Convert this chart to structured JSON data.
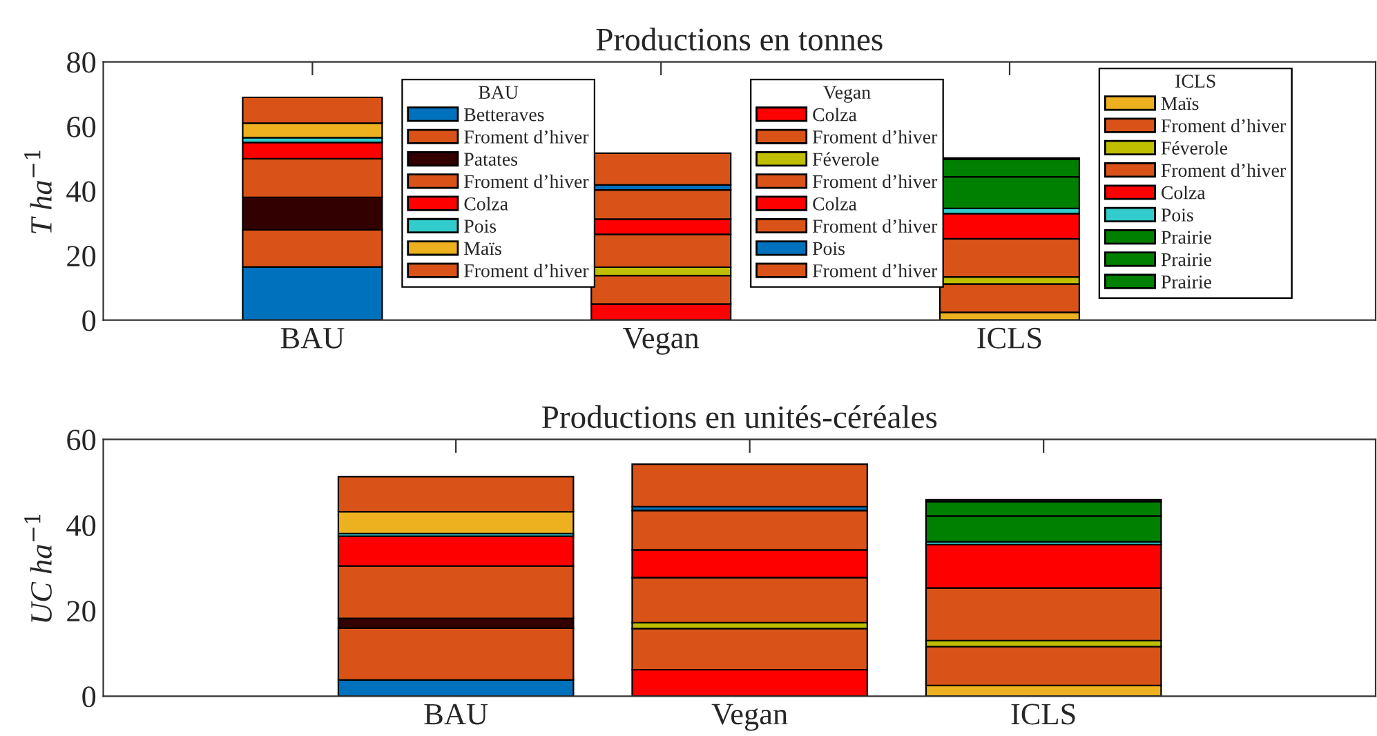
{
  "chart_data": [
    {
      "type": "bar",
      "stacked": true,
      "title": "Productions en tonnes",
      "ylabel": "T ha$^{−1}$",
      "categories": [
        "BAU",
        "Vegan",
        "ICLS"
      ],
      "ylim": [
        0,
        80
      ],
      "yticks": [
        0,
        20,
        40,
        60,
        80
      ],
      "legend": "right",
      "series": [
        {
          "name": "Betteraves",
          "color": "#0072bd",
          "values": [
            16.5,
            null,
            null
          ]
        },
        {
          "name": "Froment d’hiver",
          "color": "#d95319",
          "values": [
            11.5,
            null,
            null
          ]
        },
        {
          "name": "Patates",
          "color": "#330000",
          "values": [
            10,
            null,
            null
          ]
        },
        {
          "name": "Froment d’hiver",
          "color": "#d95319",
          "values": [
            12,
            null,
            null
          ]
        },
        {
          "name": "Colza",
          "color": "#ff0000",
          "values": [
            5,
            null,
            null
          ]
        },
        {
          "name": "Pois",
          "color": "#33cccc",
          "values": [
            1.5,
            null,
            null
          ]
        },
        {
          "name": "Maïs",
          "color": "#edb120",
          "values": [
            4.5,
            null,
            null
          ]
        },
        {
          "name": "Froment d’hiver",
          "color": "#d95319",
          "values": [
            8,
            null,
            null
          ]
        },
        {
          "name": "Colza",
          "color": "#ff0000",
          "values": [
            null,
            5,
            null
          ]
        },
        {
          "name": "Froment d’hiver",
          "color": "#d95319",
          "values": [
            null,
            8.8,
            null
          ]
        },
        {
          "name": "Féverole",
          "color": "#bfbf00",
          "values": [
            null,
            2.6,
            null
          ]
        },
        {
          "name": "Froment d’hiver",
          "color": "#d95319",
          "values": [
            null,
            10.2,
            null
          ]
        },
        {
          "name": "Colza",
          "color": "#ff0000",
          "values": [
            null,
            4.7,
            null
          ]
        },
        {
          "name": "Froment d’hiver",
          "color": "#d95319",
          "values": [
            null,
            9,
            null
          ]
        },
        {
          "name": "Pois",
          "color": "#0072bd",
          "values": [
            null,
            1.6,
            null
          ]
        },
        {
          "name": "Froment d’hiver",
          "color": "#d95319",
          "values": [
            null,
            9.8,
            null
          ]
        },
        {
          "name": "Maïs",
          "color": "#edb120",
          "values": [
            null,
            null,
            2.4
          ]
        },
        {
          "name": "Froment d’hiver",
          "color": "#d95319",
          "values": [
            null,
            null,
            8.8
          ]
        },
        {
          "name": "Féverole",
          "color": "#bfbf00",
          "values": [
            null,
            null,
            2.2
          ]
        },
        {
          "name": "Froment d’hiver",
          "color": "#d95319",
          "values": [
            null,
            null,
            11.8
          ]
        },
        {
          "name": "Colza",
          "color": "#ff0000",
          "values": [
            null,
            null,
            7.8
          ]
        },
        {
          "name": "Pois",
          "color": "#33cccc",
          "values": [
            null,
            null,
            1.6
          ]
        },
        {
          "name": "Prairie",
          "color": "#008000",
          "values": [
            null,
            null,
            9.8
          ]
        },
        {
          "name": "Prairie",
          "color": "#008000",
          "values": [
            null,
            null,
            5.4
          ]
        },
        {
          "name": "Prairie",
          "color": "#008000",
          "values": [
            null,
            null,
            0.4
          ]
        }
      ]
    },
    {
      "type": "bar",
      "stacked": true,
      "title": "Productions en unités-céréales",
      "ylabel": "UC ha$^{−1}$",
      "categories": [
        "BAU",
        "Vegan",
        "ICLS"
      ],
      "ylim": [
        0,
        60
      ],
      "yticks": [
        0,
        20,
        40,
        60
      ],
      "series": [
        {
          "color": "#0072bd",
          "values": [
            3.8,
            null,
            null
          ]
        },
        {
          "color": "#d95319",
          "values": [
            12.1,
            null,
            null
          ]
        },
        {
          "color": "#330000",
          "values": [
            2.3,
            null,
            null
          ]
        },
        {
          "color": "#d95319",
          "values": [
            12.2,
            null,
            null
          ]
        },
        {
          "color": "#ff0000",
          "values": [
            7,
            null,
            null
          ]
        },
        {
          "color": "#33cccc",
          "values": [
            0.6,
            null,
            null
          ]
        },
        {
          "color": "#edb120",
          "values": [
            5.1,
            null,
            null
          ]
        },
        {
          "color": "#d95319",
          "values": [
            8.2,
            null,
            null
          ]
        },
        {
          "color": "#ff0000",
          "values": [
            null,
            6.2,
            null
          ]
        },
        {
          "color": "#d95319",
          "values": [
            null,
            9.6,
            null
          ]
        },
        {
          "color": "#bfbf00",
          "values": [
            null,
            1.4,
            null
          ]
        },
        {
          "color": "#d95319",
          "values": [
            null,
            10.5,
            null
          ]
        },
        {
          "color": "#ff0000",
          "values": [
            null,
            6.5,
            null
          ]
        },
        {
          "color": "#d95319",
          "values": [
            null,
            9.2,
            null
          ]
        },
        {
          "color": "#0072bd",
          "values": [
            null,
            0.9,
            null
          ]
        },
        {
          "color": "#d95319",
          "values": [
            null,
            9.9,
            null
          ]
        },
        {
          "color": "#edb120",
          "values": [
            null,
            null,
            2.5
          ]
        },
        {
          "color": "#d95319",
          "values": [
            null,
            null,
            9.1
          ]
        },
        {
          "color": "#bfbf00",
          "values": [
            null,
            null,
            1.4
          ]
        },
        {
          "color": "#d95319",
          "values": [
            null,
            null,
            12.3
          ]
        },
        {
          "color": "#ff0000",
          "values": [
            null,
            null,
            10.1
          ]
        },
        {
          "color": "#33cccc",
          "values": [
            null,
            null,
            0.7
          ]
        },
        {
          "color": "#008000",
          "values": [
            null,
            null,
            6
          ]
        },
        {
          "color": "#008000",
          "values": [
            null,
            null,
            3.4
          ]
        },
        {
          "color": "#008000",
          "values": [
            null,
            null,
            0.4
          ]
        }
      ]
    }
  ]
}
